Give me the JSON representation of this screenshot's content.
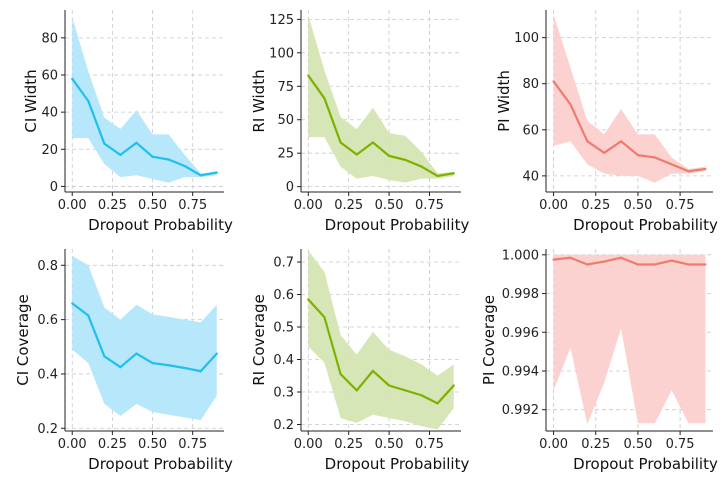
{
  "chart_data": [
    {
      "type": "line",
      "xlabel": "Dropout Probability",
      "ylabel": "CI Width",
      "x": [
        0.0,
        0.1,
        0.2,
        0.3,
        0.4,
        0.5,
        0.6,
        0.7,
        0.8,
        0.9
      ],
      "series": [
        {
          "values": [
            58,
            46,
            23,
            17,
            23.5,
            16,
            14.5,
            11,
            6,
            7.5
          ],
          "lower": [
            26,
            26,
            12,
            5,
            6,
            4,
            2,
            5,
            5,
            6
          ],
          "upper": [
            91,
            62,
            37,
            31,
            41,
            28,
            28,
            17,
            7,
            8
          ]
        }
      ],
      "colors": {
        "line": "#1fbfee",
        "band": "#b3e6fb"
      },
      "xlim": [
        -0.045,
        0.945
      ],
      "ylim": [
        -3,
        95
      ],
      "xticks": [
        0.0,
        0.25,
        0.5,
        0.75
      ],
      "xtick_labels": [
        "0.00",
        "0.25",
        "0.50",
        "0.75"
      ],
      "yticks": [
        0,
        20,
        40,
        60,
        80
      ],
      "ytick_labels": [
        "0",
        "20",
        "40",
        "60",
        "80"
      ],
      "grid": true
    },
    {
      "type": "line",
      "xlabel": "Dropout Probability",
      "ylabel": "RI Width",
      "x": [
        0.0,
        0.1,
        0.2,
        0.3,
        0.4,
        0.5,
        0.6,
        0.7,
        0.8,
        0.9
      ],
      "series": [
        {
          "values": [
            83,
            66,
            33,
            24,
            33,
            23,
            20,
            15,
            8,
            10
          ],
          "lower": [
            37,
            37,
            15,
            6,
            8,
            5,
            3,
            6,
            6,
            8
          ],
          "upper": [
            128,
            87,
            52,
            43,
            59,
            40,
            38,
            26,
            10,
            11
          ]
        }
      ],
      "colors": {
        "line": "#7fb000",
        "band": "#d4e5b2"
      },
      "xlim": [
        -0.045,
        0.945
      ],
      "ylim": [
        -4,
        132
      ],
      "xticks": [
        0.0,
        0.25,
        0.5,
        0.75
      ],
      "xtick_labels": [
        "0.00",
        "0.25",
        "0.50",
        "0.75"
      ],
      "yticks": [
        0,
        25,
        50,
        75,
        100,
        125
      ],
      "ytick_labels": [
        "0",
        "25",
        "50",
        "75",
        "100",
        "125"
      ],
      "grid": true
    },
    {
      "type": "line",
      "xlabel": "Dropout Probability",
      "ylabel": "PI Width",
      "x": [
        0.0,
        0.1,
        0.2,
        0.3,
        0.4,
        0.5,
        0.6,
        0.7,
        0.8,
        0.9
      ],
      "series": [
        {
          "values": [
            81,
            71,
            55,
            50,
            55,
            49,
            48,
            45,
            42,
            43
          ],
          "lower": [
            53,
            55,
            45,
            41,
            40,
            40,
            37,
            41,
            41,
            42
          ],
          "upper": [
            110,
            87,
            64,
            58,
            69,
            58,
            58,
            48,
            43,
            44
          ]
        }
      ],
      "colors": {
        "line": "#f07a6e",
        "band": "#fbd0cc"
      },
      "xlim": [
        -0.045,
        0.945
      ],
      "ylim": [
        33,
        112
      ],
      "xticks": [
        0.0,
        0.25,
        0.5,
        0.75
      ],
      "xtick_labels": [
        "0.00",
        "0.25",
        "0.50",
        "0.75"
      ],
      "yticks": [
        40,
        60,
        80,
        100
      ],
      "ytick_labels": [
        "40",
        "60",
        "80",
        "100"
      ],
      "grid": true
    },
    {
      "type": "line",
      "xlabel": "Dropout Probability",
      "ylabel": "CI Coverage",
      "x": [
        0.0,
        0.1,
        0.2,
        0.3,
        0.4,
        0.5,
        0.6,
        0.7,
        0.8,
        0.9
      ],
      "series": [
        {
          "values": [
            0.66,
            0.615,
            0.465,
            0.425,
            0.475,
            0.44,
            0.432,
            0.422,
            0.41,
            0.475
          ],
          "lower": [
            0.49,
            0.44,
            0.29,
            0.245,
            0.29,
            0.26,
            0.25,
            0.24,
            0.23,
            0.32
          ],
          "upper": [
            0.835,
            0.8,
            0.645,
            0.6,
            0.655,
            0.62,
            0.61,
            0.6,
            0.59,
            0.655
          ]
        }
      ],
      "colors": {
        "line": "#1fbfee",
        "band": "#b3e6fb"
      },
      "xlim": [
        -0.045,
        0.945
      ],
      "ylim": [
        0.19,
        0.86
      ],
      "xticks": [
        0.0,
        0.25,
        0.5,
        0.75
      ],
      "xtick_labels": [
        "0.00",
        "0.25",
        "0.50",
        "0.75"
      ],
      "yticks": [
        0.2,
        0.4,
        0.6,
        0.8
      ],
      "ytick_labels": [
        "0.2",
        "0.4",
        "0.6",
        "0.8"
      ],
      "grid": true
    },
    {
      "type": "line",
      "xlabel": "Dropout Probability",
      "ylabel": "RI Coverage",
      "x": [
        0.0,
        0.1,
        0.2,
        0.3,
        0.4,
        0.5,
        0.6,
        0.7,
        0.8,
        0.9
      ],
      "series": [
        {
          "values": [
            0.585,
            0.53,
            0.355,
            0.305,
            0.365,
            0.32,
            0.305,
            0.29,
            0.265,
            0.32
          ],
          "lower": [
            0.44,
            0.39,
            0.22,
            0.205,
            0.23,
            0.22,
            0.21,
            0.195,
            0.185,
            0.25
          ],
          "upper": [
            0.735,
            0.67,
            0.475,
            0.415,
            0.485,
            0.43,
            0.41,
            0.385,
            0.35,
            0.385
          ]
        }
      ],
      "colors": {
        "line": "#7fb000",
        "band": "#d4e5b2"
      },
      "xlim": [
        -0.045,
        0.945
      ],
      "ylim": [
        0.18,
        0.74
      ],
      "xticks": [
        0.0,
        0.25,
        0.5,
        0.75
      ],
      "xtick_labels": [
        "0.00",
        "0.25",
        "0.50",
        "0.75"
      ],
      "yticks": [
        0.2,
        0.3,
        0.4,
        0.5,
        0.6,
        0.7
      ],
      "ytick_labels": [
        "0.2",
        "0.3",
        "0.4",
        "0.5",
        "0.6",
        "0.7"
      ],
      "grid": true
    },
    {
      "type": "line",
      "xlabel": "Dropout Probability",
      "ylabel": "PI Coverage",
      "x": [
        0.0,
        0.1,
        0.2,
        0.3,
        0.4,
        0.5,
        0.6,
        0.7,
        0.8,
        0.9
      ],
      "series": [
        {
          "values": [
            0.99975,
            0.99985,
            0.9995,
            0.99965,
            0.99985,
            0.9995,
            0.9995,
            0.9997,
            0.9995,
            0.9995
          ],
          "lower": [
            0.993,
            0.9952,
            0.99125,
            0.9934,
            0.9962,
            0.9913,
            0.9913,
            0.993,
            0.9913,
            0.9913
          ],
          "upper": [
            1.0,
            1.0,
            1.0,
            1.0,
            1.0,
            1.0,
            1.0,
            1.0,
            1.0,
            1.0
          ]
        }
      ],
      "colors": {
        "line": "#f07a6e",
        "band": "#fbd0cc"
      },
      "xlim": [
        -0.045,
        0.945
      ],
      "ylim": [
        0.9909,
        1.0003
      ],
      "xticks": [
        0.0,
        0.25,
        0.5,
        0.75
      ],
      "xtick_labels": [
        "0.00",
        "0.25",
        "0.50",
        "0.75"
      ],
      "yticks": [
        0.992,
        0.994,
        0.996,
        0.998,
        1.0
      ],
      "ytick_labels": [
        "0.992",
        "0.994",
        "0.996",
        "0.998",
        "1.000"
      ],
      "grid": true
    }
  ]
}
